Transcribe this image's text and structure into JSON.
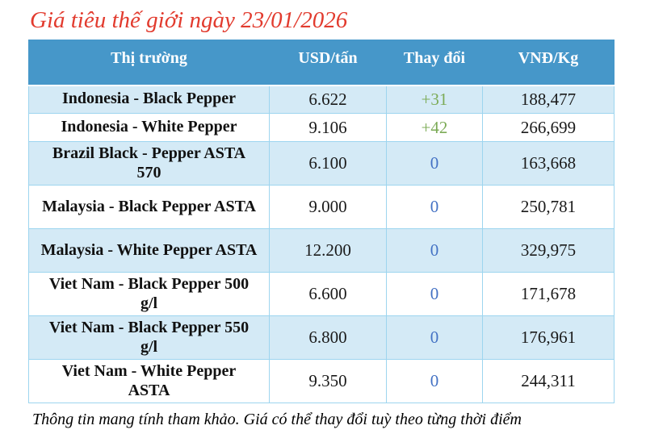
{
  "title": "Giá tiêu thế giới ngày 23/01/2026",
  "footer": "Thông tin mang tính tham khảo. Giá có thể thay đổi tuỳ theo từng thời điểm",
  "colors": {
    "title_red": "#e23b2e",
    "header_blue": "#4697c9",
    "banded_row_light_blue": "#d4eaf6",
    "table_border_blue": "#9dd5ef",
    "change_positive_green": "#7cab57",
    "change_zero_blue": "#4472c4"
  },
  "chart_data": {
    "type": "table",
    "title": "Giá tiêu thế giới ngày 23/01/2026",
    "columns": [
      "Thị trường",
      "USD/tấn",
      "Thay đổi",
      "VNĐ/Kg"
    ],
    "rows": [
      {
        "market": "Indonesia - Black Pepper",
        "usd": "6.622",
        "change": "+31",
        "vnd": "188,477"
      },
      {
        "market": "Indonesia - White Pepper",
        "usd": "9.106",
        "change": "+42",
        "vnd": "266,699"
      },
      {
        "market": "Brazil Black - Pepper ASTA 570",
        "usd": "6.100",
        "change": "0",
        "vnd": "163,668"
      },
      {
        "market": "Malaysia - Black Pepper ASTA",
        "usd": "9.000",
        "change": "0",
        "vnd": "250,781"
      },
      {
        "market": "Malaysia - White Pepper ASTA",
        "usd": "12.200",
        "change": "0",
        "vnd": "329,975"
      },
      {
        "market": "Viet Nam - Black Pepper 500 g/l",
        "usd": "6.600",
        "change": "0",
        "vnd": "171,678"
      },
      {
        "market": "Viet Nam - Black Pepper 550 g/l",
        "usd": "6.800",
        "change": "0",
        "vnd": "176,961"
      },
      {
        "market": "Viet Nam - White Pepper ASTA",
        "usd": "9.350",
        "change": "0",
        "vnd": "244,311"
      }
    ],
    "legend": "none",
    "notes": "Banded rows: odd rows light blue, even rows white. Positive changes green, zero changes blue."
  }
}
